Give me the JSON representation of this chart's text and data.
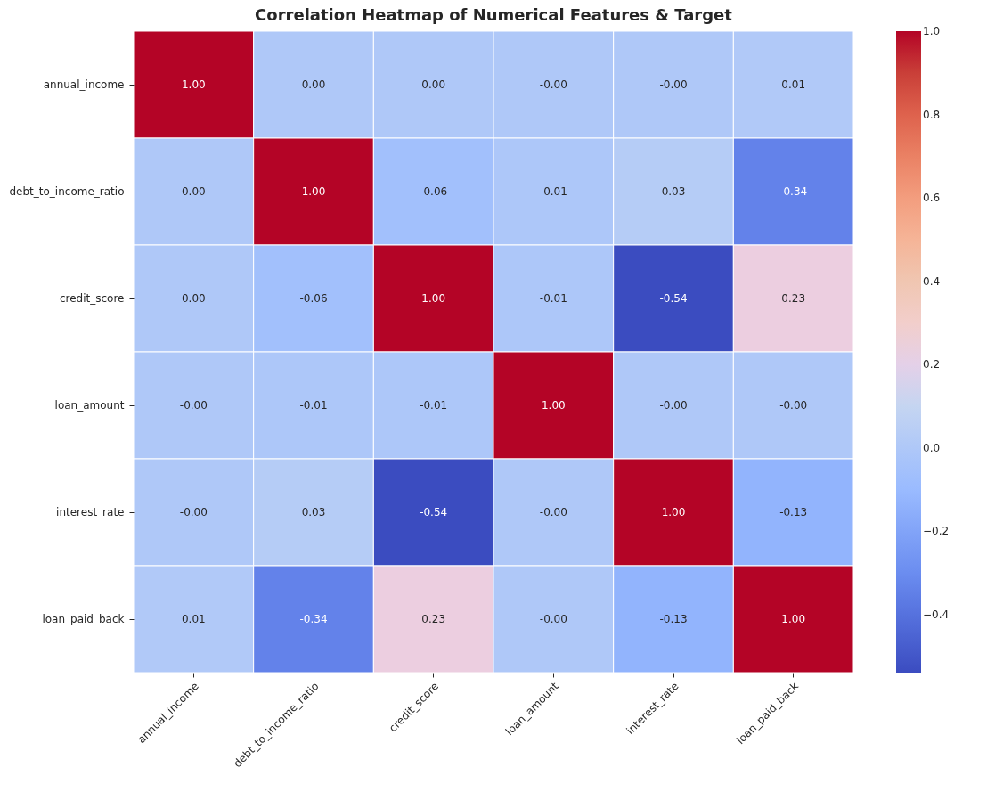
{
  "chart_data": {
    "type": "heatmap",
    "title": "Correlation Heatmap of Numerical Features & Target",
    "categories": [
      "annual_income",
      "debt_to_income_ratio",
      "credit_score",
      "loan_amount",
      "interest_rate",
      "loan_paid_back"
    ],
    "y_categories": [
      "annual_income",
      "debt_to_income_ratio",
      "credit_score",
      "loan_amount",
      "interest_rate",
      "loan_paid_back"
    ],
    "cells": [
      [
        1.0,
        0.0,
        0.0,
        0.0,
        0.0,
        0.01
      ],
      [
        0.0,
        1.0,
        -0.06,
        -0.01,
        0.03,
        -0.34
      ],
      [
        0.0,
        -0.06,
        1.0,
        -0.01,
        -0.54,
        0.23
      ],
      [
        0.0,
        -0.01,
        -0.01,
        1.0,
        0.0,
        0.0
      ],
      [
        0.0,
        0.03,
        -0.54,
        0.0,
        1.0,
        -0.13
      ],
      [
        0.01,
        -0.34,
        0.23,
        0.0,
        -0.13,
        1.0
      ]
    ],
    "cell_labels": [
      [
        "1.00",
        "0.00",
        "0.00",
        "-0.00",
        "-0.00",
        "0.01"
      ],
      [
        "0.00",
        "1.00",
        "-0.06",
        "-0.01",
        "0.03",
        "-0.34"
      ],
      [
        "0.00",
        "-0.06",
        "1.00",
        "-0.01",
        "-0.54",
        "0.23"
      ],
      [
        "-0.00",
        "-0.01",
        "-0.01",
        "1.00",
        "-0.00",
        "-0.00"
      ],
      [
        "-0.00",
        "0.03",
        "-0.54",
        "-0.00",
        "1.00",
        "-0.13"
      ],
      [
        "0.01",
        "-0.34",
        "0.23",
        "-0.00",
        "-0.13",
        "1.00"
      ]
    ],
    "clim": [
      -0.54,
      1.0
    ],
    "cticks": [
      {
        "value": -0.4,
        "label": "−0.4"
      },
      {
        "value": -0.2,
        "label": "−0.2"
      },
      {
        "value": 0,
        "label": "0.0"
      },
      {
        "value": 0.2,
        "label": "0.2"
      },
      {
        "value": 0.4,
        "label": "0.4"
      },
      {
        "value": 0.6,
        "label": "0.6"
      },
      {
        "value": 0.8,
        "label": "0.8"
      },
      {
        "value": 1.0,
        "label": "1.0"
      }
    ]
  }
}
